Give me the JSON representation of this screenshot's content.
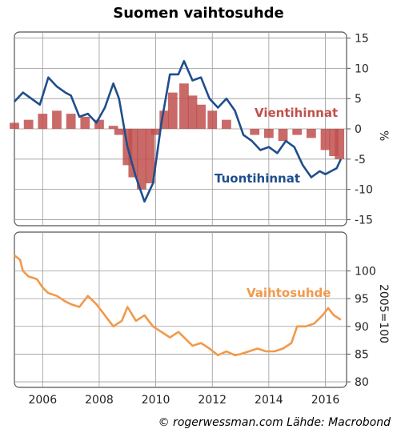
{
  "title": "Suomen vaihtosuhde",
  "credit": "© rogerwessman.com Lähde: Macrobond",
  "colors": {
    "vienti": "#c0504d",
    "tuonti": "#1f4e8c",
    "vaihtosuhde": "#f2994a",
    "grid": "#999999",
    "frame": "#555555"
  },
  "chart_data": [
    {
      "type": "bar+line",
      "ylim": [
        -16,
        16
      ],
      "yticks": [
        "15",
        "10",
        "5",
        "0",
        "-5",
        "-10",
        "-15"
      ],
      "ytick_values": [
        15,
        10,
        5,
        0,
        -5,
        -10,
        -15
      ],
      "ylabel": "%",
      "xlim": [
        2005.0,
        2016.75
      ],
      "xticks": [
        "2006",
        "2008",
        "2010",
        "2012",
        "2014",
        "2016"
      ],
      "xtick_values": [
        2006,
        2008,
        2010,
        2012,
        2014,
        2016
      ],
      "grid": true,
      "series": [
        {
          "name": "Vientihinnat",
          "kind": "bar",
          "x": [
            2005.0,
            2005.5,
            2006.0,
            2006.5,
            2007.0,
            2007.5,
            2008.0,
            2008.5,
            2008.7,
            2009.0,
            2009.2,
            2009.5,
            2009.8,
            2010.0,
            2010.3,
            2010.6,
            2011.0,
            2011.3,
            2011.6,
            2012.0,
            2012.5,
            2013.0,
            2013.5,
            2014.0,
            2014.5,
            2015.0,
            2015.5,
            2016.0,
            2016.3,
            2016.5
          ],
          "values": [
            1,
            1.5,
            2.5,
            3,
            2.5,
            2,
            1.5,
            0.5,
            -1,
            -6,
            -8,
            -10,
            -9,
            -1,
            3,
            6,
            7.5,
            5.5,
            4,
            3,
            1.5,
            0,
            -1,
            -1.5,
            -2,
            -1,
            -1.5,
            -3.5,
            -4.5,
            -5
          ]
        },
        {
          "name": "Tuontihinnat",
          "kind": "line",
          "x": [
            2005.0,
            2005.3,
            2005.6,
            2005.9,
            2006.2,
            2006.5,
            2006.8,
            2007.0,
            2007.3,
            2007.6,
            2007.9,
            2008.2,
            2008.5,
            2008.7,
            2009.0,
            2009.3,
            2009.6,
            2009.9,
            2010.2,
            2010.5,
            2010.8,
            2011.0,
            2011.3,
            2011.6,
            2011.9,
            2012.2,
            2012.5,
            2012.8,
            2013.1,
            2013.4,
            2013.7,
            2014.0,
            2014.3,
            2014.6,
            2014.9,
            2015.2,
            2015.5,
            2015.8,
            2016.0,
            2016.2,
            2016.4,
            2016.55
          ],
          "values": [
            4.5,
            6,
            5,
            4,
            8.5,
            7,
            6,
            5.5,
            2,
            2.5,
            1,
            3.5,
            7.5,
            5,
            -3,
            -8,
            -12,
            -9,
            1,
            9,
            9,
            11.2,
            8,
            8.5,
            5,
            3.5,
            5,
            3,
            -1,
            -2,
            -3.5,
            -3,
            -4,
            -2,
            -3,
            -6,
            -8,
            -7,
            -7.5,
            -7,
            -6.5,
            -5
          ]
        }
      ],
      "annotations": [
        "Vientihinnat",
        "Tuontihinnat"
      ]
    },
    {
      "type": "line",
      "ylim": [
        79,
        107
      ],
      "yticks": [
        "100",
        "95",
        "90",
        "85",
        "80"
      ],
      "ytick_values": [
        100,
        95,
        90,
        85,
        80
      ],
      "ylabel": "2005=100",
      "xlim": [
        2005.0,
        2016.75
      ],
      "xticks": [
        "2006",
        "2008",
        "2010",
        "2012",
        "2014",
        "2016"
      ],
      "xtick_values": [
        2006,
        2008,
        2010,
        2012,
        2014,
        2016
      ],
      "grid": true,
      "series": [
        {
          "name": "Vaihtosuhde",
          "x": [
            2005.0,
            2005.2,
            2005.3,
            2005.5,
            2005.8,
            2006.0,
            2006.2,
            2006.5,
            2006.8,
            2007.0,
            2007.3,
            2007.6,
            2007.9,
            2008.2,
            2008.5,
            2008.8,
            2009.0,
            2009.3,
            2009.6,
            2009.9,
            2010.2,
            2010.5,
            2010.8,
            2011.0,
            2011.3,
            2011.6,
            2011.9,
            2012.2,
            2012.5,
            2012.8,
            2013.0,
            2013.3,
            2013.6,
            2013.9,
            2014.2,
            2014.5,
            2014.8,
            2015.0,
            2015.3,
            2015.6,
            2015.9,
            2016.1,
            2016.3,
            2016.55
          ],
          "values": [
            102.8,
            102,
            100,
            99,
            98.5,
            97,
            96,
            95.5,
            94.5,
            94,
            93.5,
            95.5,
            94,
            92,
            90,
            91,
            93.5,
            91,
            92,
            90,
            89,
            88,
            89,
            88,
            86.5,
            87,
            86,
            84.8,
            85.5,
            84.8,
            85,
            85.5,
            86,
            85.5,
            85.5,
            86,
            87,
            90,
            90,
            90.5,
            92,
            93.3,
            92,
            91.2
          ]
        }
      ],
      "annotations": [
        "Vaihtosuhde"
      ]
    }
  ]
}
